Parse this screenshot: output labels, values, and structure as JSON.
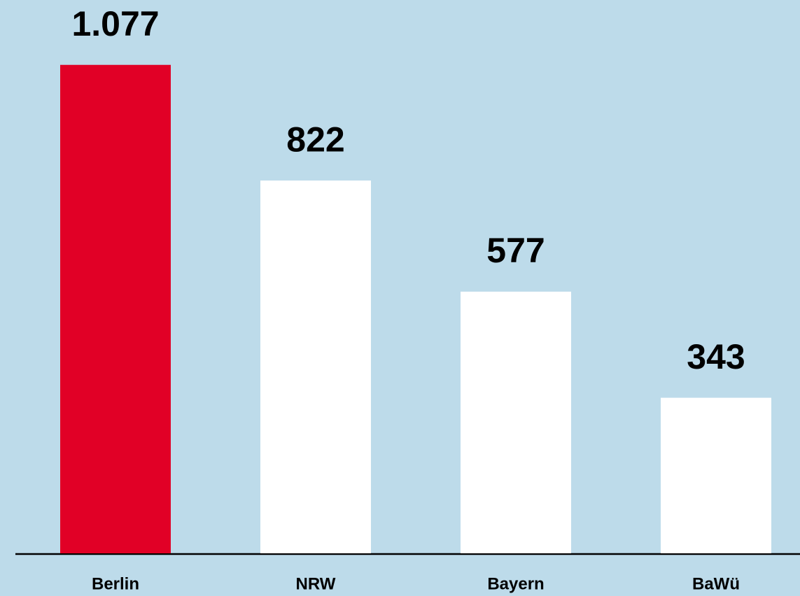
{
  "chart_data": {
    "type": "bar",
    "categories": [
      "Berlin",
      "NRW",
      "Bayern",
      "BaWü"
    ],
    "values": [
      1077,
      822,
      577,
      343
    ],
    "value_labels": [
      "1.077",
      "822",
      "577",
      "343"
    ],
    "colors": [
      "#e10026",
      "#ffffff",
      "#ffffff",
      "#ffffff"
    ],
    "ylim": [
      0,
      1200
    ]
  }
}
